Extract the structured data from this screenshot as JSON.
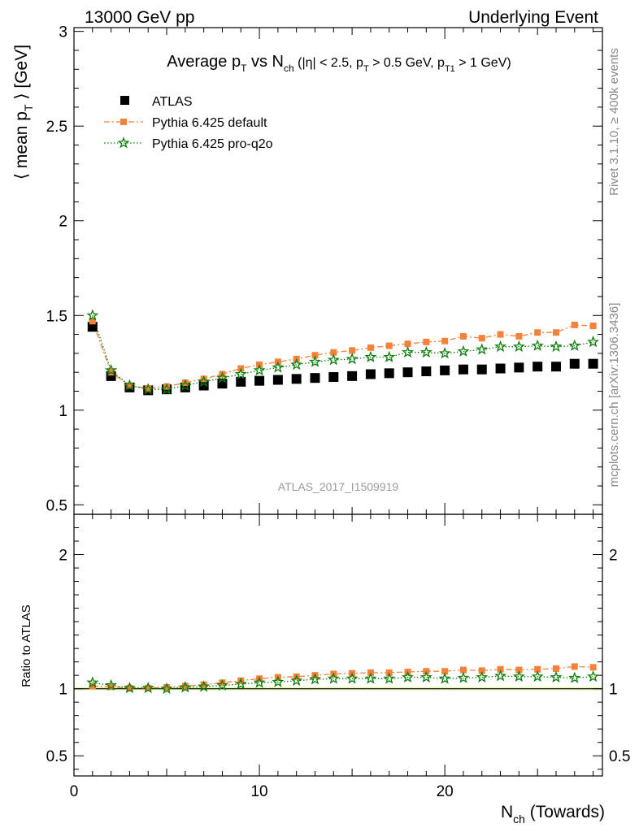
{
  "header": {
    "left": "13000 GeV pp",
    "right": "Underlying Event"
  },
  "side_labels": {
    "rivet": "Rivet 3.1.10, ≥ 400k events",
    "mcplots": "mcplots.cern.ch [arXiv:1306.3436]"
  },
  "title": {
    "main": "Average p",
    "main_sub": "T",
    "vs": " vs N",
    "vs_sub": "ch",
    "cuts_a": " (|η| < 2.5, p",
    "cuts_a_sub": "T",
    "cuts_b": " > 0.5 GeV, p",
    "cuts_b_sub": "T1",
    "cuts_c": " > 1 GeV)"
  },
  "analysis_label": "ATLAS_2017_I1509919",
  "colors": {
    "atlas": "#000000",
    "default": "#f5813a",
    "proq2o": "#0a7d0a",
    "band": "#ddf5a0"
  },
  "chart_data": {
    "type": "scatter",
    "x": [
      1,
      2,
      3,
      4,
      5,
      6,
      7,
      8,
      9,
      10,
      11,
      12,
      13,
      14,
      15,
      16,
      17,
      18,
      19,
      20,
      21,
      22,
      23,
      24,
      25,
      26,
      27,
      28
    ],
    "main_panel": {
      "ylabel_pre": "⟨ mean p",
      "ylabel_sub": "T",
      "ylabel_post": " ⟩ [GeV]",
      "xlim": [
        0,
        28.5
      ],
      "ylim": [
        0.45,
        3.02
      ],
      "yticks": [
        0.5,
        1,
        1.5,
        2,
        2.5,
        3
      ],
      "ytick_labels": [
        "0.5",
        "1",
        "1.5",
        "2",
        "2.5",
        "3"
      ],
      "series": [
        {
          "name": "ATLAS",
          "key": "atlas",
          "marker": "square",
          "values": [
            1.44,
            1.18,
            1.12,
            1.105,
            1.11,
            1.12,
            1.13,
            1.14,
            1.15,
            1.155,
            1.16,
            1.165,
            1.17,
            1.175,
            1.18,
            1.19,
            1.195,
            1.2,
            1.205,
            1.21,
            1.215,
            1.215,
            1.22,
            1.225,
            1.23,
            1.23,
            1.245,
            1.245
          ]
        },
        {
          "name": "Pythia 6.425 default",
          "key": "default",
          "marker": "filled-square",
          "line": "dash-dot",
          "values": [
            1.47,
            1.2,
            1.13,
            1.115,
            1.125,
            1.145,
            1.165,
            1.19,
            1.22,
            1.24,
            1.255,
            1.27,
            1.29,
            1.305,
            1.315,
            1.33,
            1.34,
            1.35,
            1.36,
            1.365,
            1.39,
            1.38,
            1.4,
            1.39,
            1.41,
            1.41,
            1.45,
            1.445
          ]
        },
        {
          "name": "Pythia 6.425 pro-q2o",
          "key": "proq2o",
          "marker": "star",
          "line": "dotted",
          "values": [
            1.5,
            1.21,
            1.13,
            1.11,
            1.11,
            1.13,
            1.15,
            1.17,
            1.19,
            1.21,
            1.225,
            1.24,
            1.255,
            1.265,
            1.27,
            1.28,
            1.28,
            1.305,
            1.305,
            1.3,
            1.31,
            1.32,
            1.335,
            1.335,
            1.34,
            1.335,
            1.34,
            1.36
          ]
        }
      ]
    },
    "ratio_panel": {
      "ylabel": "Ratio to ATLAS",
      "ylim": [
        0.35,
        2.3
      ],
      "yticks": [
        0.5,
        1,
        2
      ],
      "ytick_labels": [
        "0.5",
        "1",
        "2"
      ],
      "series": [
        {
          "name": "Pythia 6.425 default",
          "key": "default",
          "values": [
            1.02,
            1.015,
            1.005,
            1.005,
            1.01,
            1.02,
            1.03,
            1.045,
            1.06,
            1.075,
            1.085,
            1.09,
            1.1,
            1.11,
            1.115,
            1.12,
            1.12,
            1.125,
            1.13,
            1.13,
            1.14,
            1.135,
            1.145,
            1.14,
            1.145,
            1.15,
            1.165,
            1.16
          ]
        },
        {
          "name": "Pythia 6.425 pro-q2o",
          "key": "proq2o",
          "values": [
            1.045,
            1.025,
            1.005,
            1.005,
            1.0,
            1.01,
            1.015,
            1.025,
            1.035,
            1.045,
            1.05,
            1.06,
            1.07,
            1.075,
            1.075,
            1.075,
            1.075,
            1.085,
            1.085,
            1.075,
            1.08,
            1.085,
            1.095,
            1.09,
            1.09,
            1.085,
            1.08,
            1.09
          ]
        }
      ]
    },
    "xaxis": {
      "label_pre": "N",
      "label_sub": "ch",
      "label_post": " (Towards)",
      "ticks": [
        0,
        10,
        20
      ],
      "tick_labels": [
        "0",
        "10",
        "20"
      ]
    }
  }
}
